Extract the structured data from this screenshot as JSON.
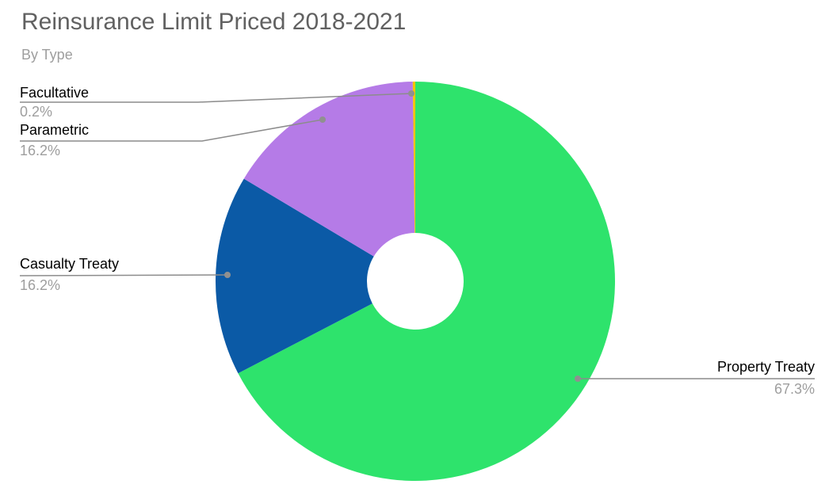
{
  "header": {
    "title": "Reinsurance Limit Priced 2018-2021",
    "subtitle": "By Type"
  },
  "chart_data": {
    "type": "pie",
    "donut": true,
    "title": "Reinsurance Limit Priced 2018-2021",
    "subtitle": "By Type",
    "legend_position": "callout-labels",
    "slices": [
      {
        "label": "Property Treaty",
        "value": 67.3,
        "pct_label": "67.3%",
        "color": "#2ee36c"
      },
      {
        "label": "Casualty Treaty",
        "value": 16.2,
        "pct_label": "16.2%",
        "color": "#0b5aa6"
      },
      {
        "label": "Parametric",
        "value": 16.2,
        "pct_label": "16.2%",
        "color": "#b57be7"
      },
      {
        "label": "Facultative",
        "value": 0.2,
        "pct_label": "0.2%",
        "color": "#f6c500"
      }
    ],
    "title_color": "#616161",
    "subtitle_color": "#9e9e9e",
    "label_color": "#000000",
    "pct_color": "#9e9e9e",
    "callout_line_color": "#8c8c8c",
    "callout_dot_color": "#909090",
    "background_color": "#ffffff"
  }
}
